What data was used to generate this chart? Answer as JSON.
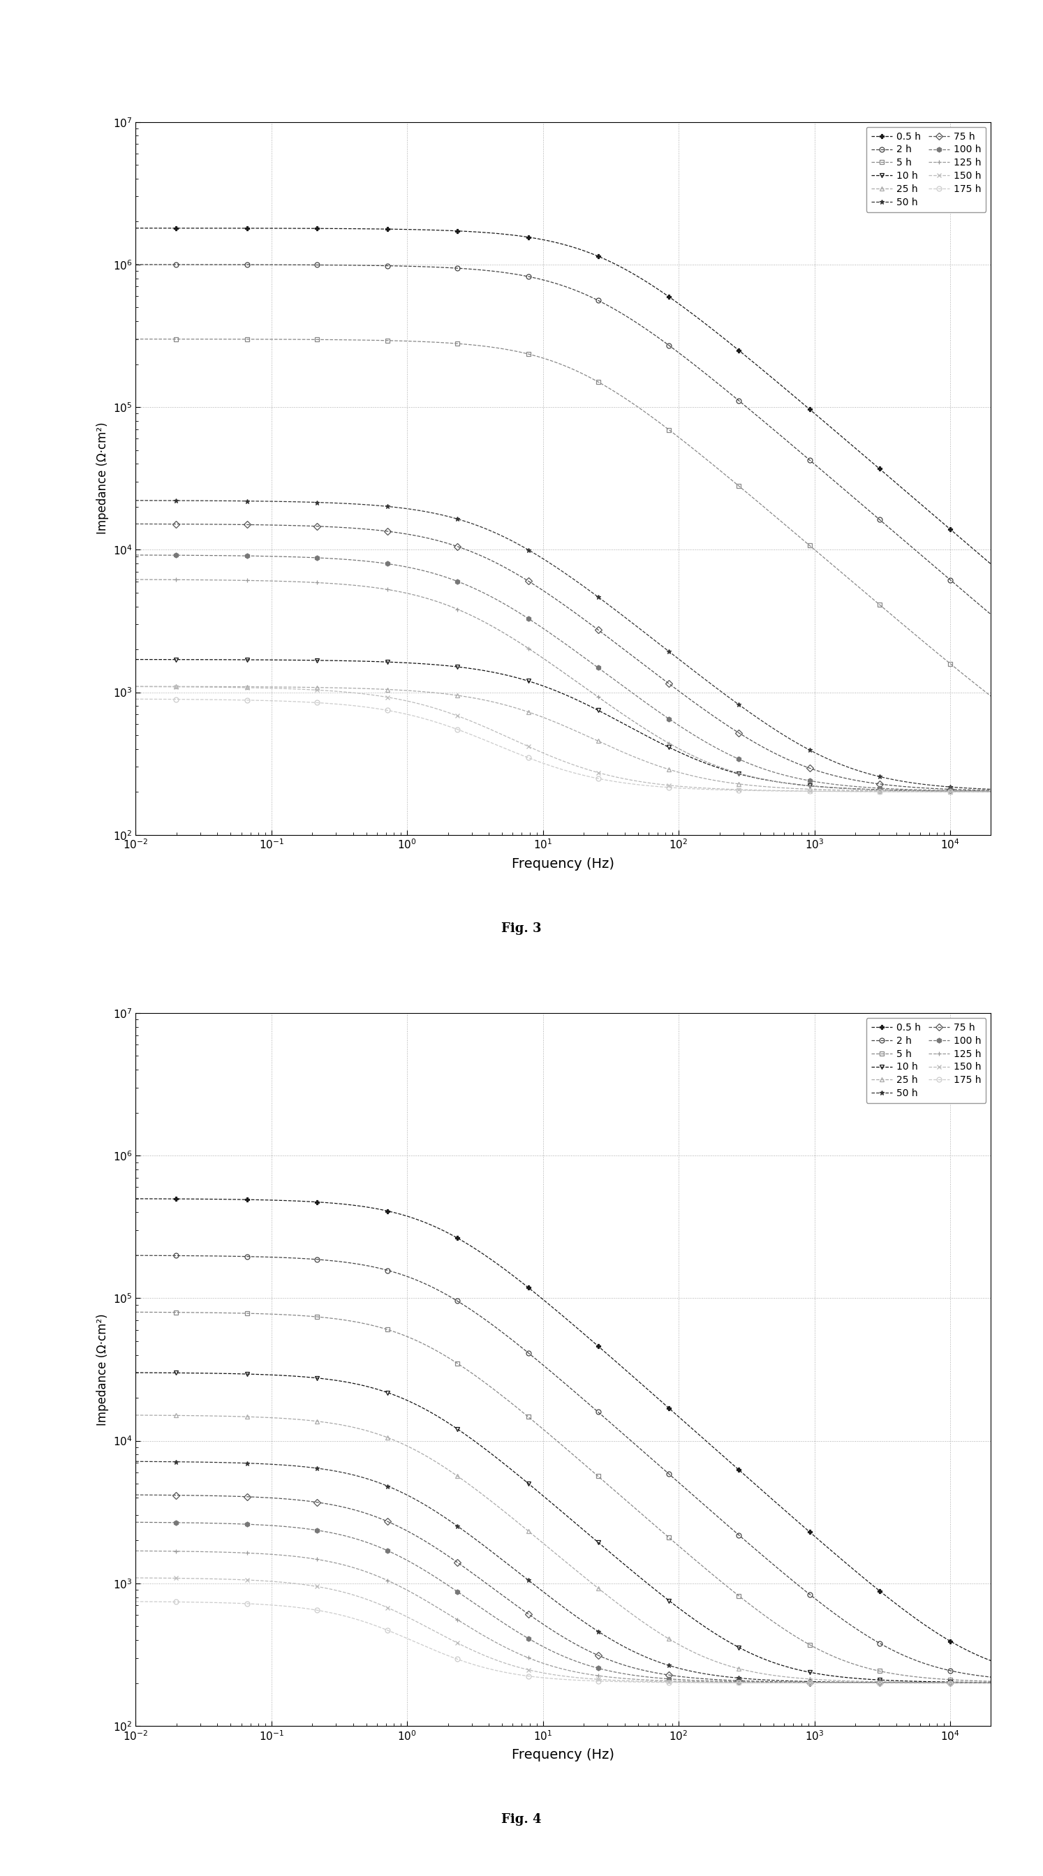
{
  "fig3": {
    "xlabel": "Frequency (Hz)",
    "ylabel": "Impedance (Ω·cm²)",
    "xlim_log": [
      -2,
      4.3
    ],
    "ylim_log": [
      2,
      7
    ],
    "caption": "Fig. 3",
    "series": [
      {
        "label": "0.5 h",
        "R_s": 200,
        "R_p": 1800000,
        "tau": 0.006,
        "alpha": 0.82,
        "color": "#1a1a1a",
        "marker": "P"
      },
      {
        "label": "2 h",
        "R_s": 200,
        "R_p": 1000000,
        "tau": 0.008,
        "alpha": 0.82,
        "color": "#444444",
        "marker": "o"
      },
      {
        "label": "5 h",
        "R_s": 200,
        "R_p": 300000,
        "tau": 0.01,
        "alpha": 0.82,
        "color": "#888888",
        "marker": "s"
      },
      {
        "label": "10 h",
        "R_s": 200,
        "R_p": 1500,
        "tau": 0.015,
        "alpha": 0.78,
        "color": "#111111",
        "marker": "v"
      },
      {
        "label": "25 h",
        "R_s": 200,
        "R_p": 900,
        "tau": 0.02,
        "alpha": 0.78,
        "color": "#aaaaaa",
        "marker": "^"
      },
      {
        "label": "50 h",
        "R_s": 200,
        "R_p": 22000,
        "tau": 0.04,
        "alpha": 0.8,
        "color": "#333333",
        "marker": "*"
      },
      {
        "label": "75 h",
        "R_s": 200,
        "R_p": 15000,
        "tau": 0.05,
        "alpha": 0.8,
        "color": "#555555",
        "marker": "D"
      },
      {
        "label": "100 h",
        "R_s": 200,
        "R_p": 9000,
        "tau": 0.06,
        "alpha": 0.8,
        "color": "#777777",
        "marker": "h"
      },
      {
        "label": "125 h",
        "R_s": 200,
        "R_p": 6000,
        "tau": 0.07,
        "alpha": 0.8,
        "color": "#999999",
        "marker": "+"
      },
      {
        "label": "150 h",
        "R_s": 200,
        "R_p": 900,
        "tau": 0.08,
        "alpha": 0.78,
        "color": "#bbbbbb",
        "marker": "x"
      },
      {
        "label": "175 h",
        "R_s": 200,
        "R_p": 700,
        "tau": 0.09,
        "alpha": 0.78,
        "color": "#cccccc",
        "marker": "o"
      }
    ]
  },
  "fig4": {
    "xlabel": "Frequency (Hz)",
    "ylabel": "Impedance (Ω·cm²)",
    "xlim_log": [
      -2,
      4.3
    ],
    "ylim_log": [
      2,
      7
    ],
    "caption": "Fig. 4",
    "series": [
      {
        "label": "0.5 h",
        "R_s": 200,
        "R_p": 500000,
        "tau": 0.1,
        "alpha": 0.85,
        "color": "#1a1a1a",
        "marker": "P"
      },
      {
        "label": "2 h",
        "R_s": 200,
        "R_p": 200000,
        "tau": 0.12,
        "alpha": 0.85,
        "color": "#444444",
        "marker": "o"
      },
      {
        "label": "5 h",
        "R_s": 200,
        "R_p": 80000,
        "tau": 0.14,
        "alpha": 0.85,
        "color": "#888888",
        "marker": "s"
      },
      {
        "label": "10 h",
        "R_s": 200,
        "R_p": 30000,
        "tau": 0.16,
        "alpha": 0.85,
        "color": "#111111",
        "marker": "v"
      },
      {
        "label": "25 h",
        "R_s": 200,
        "R_p": 15000,
        "tau": 0.18,
        "alpha": 0.85,
        "color": "#aaaaaa",
        "marker": "^"
      },
      {
        "label": "50 h",
        "R_s": 200,
        "R_p": 7000,
        "tau": 0.2,
        "alpha": 0.85,
        "color": "#333333",
        "marker": "*"
      },
      {
        "label": "75 h",
        "R_s": 200,
        "R_p": 4000,
        "tau": 0.22,
        "alpha": 0.85,
        "color": "#555555",
        "marker": "D"
      },
      {
        "label": "100 h",
        "R_s": 200,
        "R_p": 2500,
        "tau": 0.24,
        "alpha": 0.85,
        "color": "#777777",
        "marker": "h"
      },
      {
        "label": "125 h",
        "R_s": 200,
        "R_p": 1500,
        "tau": 0.26,
        "alpha": 0.85,
        "color": "#999999",
        "marker": "+"
      },
      {
        "label": "150 h",
        "R_s": 200,
        "R_p": 900,
        "tau": 0.28,
        "alpha": 0.85,
        "color": "#bbbbbb",
        "marker": "x"
      },
      {
        "label": "175 h",
        "R_s": 200,
        "R_p": 550,
        "tau": 0.3,
        "alpha": 0.85,
        "color": "#cccccc",
        "marker": "o"
      }
    ]
  }
}
